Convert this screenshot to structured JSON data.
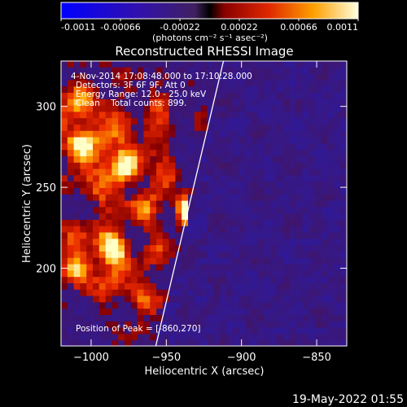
{
  "colorbar": {
    "ticks": [
      "-0.0011",
      "-0.00066",
      "-0.00022",
      "0.00022",
      "0.00066",
      "0.0011"
    ],
    "unit_label": "(photons cm⁻² s⁻¹ asec⁻²)",
    "range": [
      -0.0011,
      0.0011
    ]
  },
  "chart_data": {
    "type": "heatmap",
    "title": "Reconstructed RHESSI Image",
    "xlabel": "Heliocentric X (arcsec)",
    "ylabel": "Heliocentric Y (arcsec)",
    "xlim": [
      -1020,
      -830
    ],
    "ylim": [
      152,
      328
    ],
    "xticks": [
      -1000,
      -950,
      -900,
      -850
    ],
    "yticks": [
      200,
      250,
      300
    ],
    "annotations": [
      "4-Nov-2014 17:08:48.000 to 17:10:28.000",
      "Detectors: 3F 6F 9F, Att 0",
      "Energy Range: 12.0 - 25.0 keV",
      "Clean    Total counts: 899.",
      "Position of Peak = [-860,270]"
    ],
    "peak": [
      -860,
      270
    ],
    "limb_line": [
      [
        -957,
        152
      ],
      [
        -912,
        328
      ]
    ]
  },
  "timestamp": "19-May-2022 01:55",
  "colors": {
    "background": "#000000",
    "limb": "#ffffff"
  }
}
